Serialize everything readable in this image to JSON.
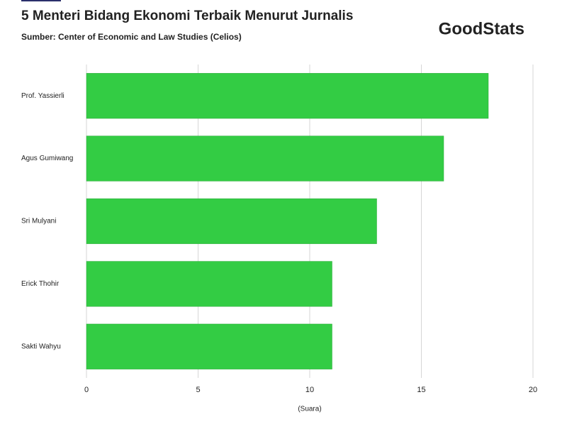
{
  "chart_data": {
    "type": "barh",
    "title": "5 Menteri Bidang Ekonomi Terbaik Menurut Jurnalis",
    "subtitle": "Sumber: Center of Economic and Law Studies (Celios)",
    "logo": "GoodStats",
    "categories": [
      "Prof. Yassierli",
      "Agus Gumiwang",
      "Sri Mulyani",
      "Erick Thohir",
      "Sakti Wahyu"
    ],
    "values": [
      18,
      16,
      13,
      11,
      11
    ],
    "color": "#33cc44",
    "xlabel": "(Suara)",
    "xlim": [
      0,
      20
    ],
    "xticks": [
      0,
      5,
      10,
      15,
      20
    ],
    "grid": true
  }
}
